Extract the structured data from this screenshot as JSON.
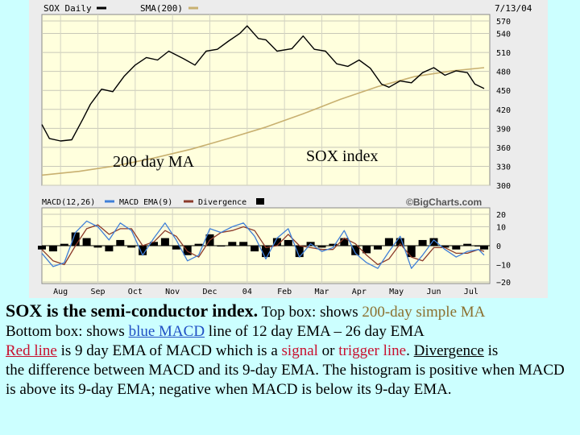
{
  "colors": {
    "background": "#CCFFFF",
    "chart_frame": "#ECECEC",
    "plot_bg": "#FFFFDD",
    "price_line": "#000000",
    "sma_line": "#C8B070",
    "macd_line": "#3F7FD8",
    "signal_line": "#8B3A2A",
    "histogram": "#000000"
  },
  "chart_data": [
    {
      "type": "line",
      "header_left": "SOX Daily",
      "legend_sma": "SMA(200)",
      "date_label": "7/13/04",
      "annotation_ma": "200 day MA",
      "annotation_index": "SOX index",
      "y_ticks": [
        "570",
        "540",
        "510",
        "480",
        "450",
        "420",
        "390",
        "360",
        "330",
        "300"
      ],
      "ylim": [
        300,
        570
      ],
      "x_ticks": [
        "Aug",
        "Sep",
        "Oct",
        "Nov",
        "Dec",
        "04",
        "Feb",
        "Mar",
        "Apr",
        "May",
        "Jun",
        "Jul"
      ],
      "x_tick_months": [
        0.5,
        1.5,
        2.5,
        3.5,
        4.5,
        5.5,
        6.5,
        7.5,
        8.5,
        9.5,
        10.5,
        11.5
      ],
      "xlim_months": [
        0,
        12
      ],
      "series": [
        {
          "name": "SOX Daily",
          "x_months": [
            0.0,
            0.2,
            0.5,
            0.8,
            1.1,
            1.3,
            1.6,
            1.9,
            2.2,
            2.5,
            2.8,
            3.1,
            3.4,
            3.8,
            4.1,
            4.4,
            4.7,
            5.0,
            5.3,
            5.5,
            5.8,
            6.0,
            6.3,
            6.7,
            7.0,
            7.3,
            7.6,
            7.9,
            8.2,
            8.5,
            8.8,
            9.1,
            9.3,
            9.6,
            9.9,
            10.2,
            10.5,
            10.8,
            11.1,
            11.4,
            11.6,
            11.85
          ],
          "values": [
            396,
            374,
            370,
            372,
            405,
            428,
            452,
            448,
            472,
            490,
            502,
            498,
            512,
            500,
            490,
            512,
            515,
            528,
            540,
            552,
            532,
            530,
            512,
            516,
            536,
            515,
            512,
            492,
            488,
            498,
            485,
            460,
            455,
            465,
            462,
            478,
            486,
            474,
            481,
            478,
            460,
            453
          ]
        },
        {
          "name": "SMA(200)",
          "x_months": [
            0.0,
            1.0,
            2.0,
            3.0,
            4.0,
            5.0,
            6.0,
            7.0,
            8.0,
            9.0,
            10.0,
            11.0,
            11.85
          ],
          "values": [
            316,
            322,
            331,
            343,
            357,
            374,
            392,
            413,
            436,
            456,
            472,
            481,
            486
          ]
        }
      ]
    },
    {
      "type": "line",
      "legend_macd": "MACD(12,26)",
      "legend_ema": "MACD EMA(9)",
      "legend_divergence": "Divergence",
      "brand": "©BigCharts.com",
      "y_ticks": [
        "20",
        "10",
        "0",
        "−10",
        "−20"
      ],
      "ylim": [
        -20,
        20
      ],
      "x_ticks": [
        "Aug",
        "Sep",
        "Oct",
        "Nov",
        "Dec",
        "04",
        "Feb",
        "Mar",
        "Apr",
        "May",
        "Jun",
        "Jul"
      ],
      "x_tick_months": [
        0.5,
        1.5,
        2.5,
        3.5,
        4.5,
        5.5,
        6.5,
        7.5,
        8.5,
        9.5,
        10.5,
        11.5
      ],
      "xlim_months": [
        0,
        12
      ],
      "series": [
        {
          "name": "MACD(12,26)",
          "x_months": [
            0.0,
            0.3,
            0.6,
            0.9,
            1.2,
            1.5,
            1.8,
            2.1,
            2.4,
            2.7,
            3.0,
            3.3,
            3.6,
            3.9,
            4.2,
            4.5,
            4.8,
            5.1,
            5.4,
            5.7,
            6.0,
            6.3,
            6.6,
            6.9,
            7.2,
            7.5,
            7.8,
            8.1,
            8.4,
            8.7,
            9.0,
            9.3,
            9.6,
            9.9,
            10.2,
            10.5,
            10.8,
            11.1,
            11.4,
            11.7,
            11.85
          ],
          "values": [
            -4,
            -11,
            -9,
            7,
            13,
            10,
            3,
            12,
            8,
            -5,
            4,
            12,
            3,
            -8,
            -5,
            9,
            7,
            10,
            12,
            5,
            -7,
            4,
            9,
            -6,
            1,
            -3,
            -1,
            8,
            -4,
            -9,
            -12,
            -3,
            5,
            -12,
            -5,
            3,
            -2,
            -6,
            -3,
            -2,
            -5
          ]
        },
        {
          "name": "MACD EMA(9)",
          "x_months": [
            0.0,
            0.3,
            0.6,
            0.9,
            1.2,
            1.5,
            1.8,
            2.1,
            2.4,
            2.7,
            3.0,
            3.3,
            3.6,
            3.9,
            4.2,
            4.5,
            4.8,
            5.1,
            5.4,
            5.7,
            6.0,
            6.3,
            6.6,
            6.9,
            7.2,
            7.5,
            7.8,
            8.1,
            8.4,
            8.7,
            9.0,
            9.3,
            9.6,
            9.9,
            10.2,
            10.5,
            10.8,
            11.1,
            11.4,
            11.7,
            11.85
          ],
          "values": [
            -2,
            -8,
            -10,
            0,
            9,
            11,
            6,
            9,
            9,
            0,
            2,
            8,
            5,
            -3,
            -6,
            3,
            7,
            8,
            10,
            8,
            -1,
            0,
            6,
            0,
            -1,
            -2,
            -2,
            4,
            1,
            -5,
            -10,
            -7,
            1,
            -6,
            -8,
            -1,
            -1,
            -4,
            -4,
            -2,
            -3
          ]
        },
        {
          "name": "Divergence",
          "x_months": [
            0.0,
            0.3,
            0.6,
            0.9,
            1.2,
            1.5,
            1.8,
            2.1,
            2.4,
            2.7,
            3.0,
            3.3,
            3.6,
            3.9,
            4.2,
            4.5,
            4.8,
            5.1,
            5.4,
            5.7,
            6.0,
            6.3,
            6.6,
            6.9,
            7.2,
            7.5,
            7.8,
            8.1,
            8.4,
            8.7,
            9.0,
            9.3,
            9.6,
            9.9,
            10.2,
            10.5,
            10.8,
            11.1,
            11.4,
            11.7,
            11.85
          ],
          "values": [
            -2,
            -3,
            1,
            7,
            4,
            -1,
            -3,
            3,
            -1,
            -5,
            2,
            4,
            -2,
            -5,
            1,
            6,
            0,
            2,
            2,
            -3,
            -6,
            4,
            3,
            -6,
            2,
            -1,
            1,
            4,
            -5,
            -4,
            -2,
            4,
            4,
            -6,
            3,
            4,
            -1,
            -2,
            1,
            0,
            -2
          ]
        }
      ]
    }
  ],
  "caption": {
    "line1_bold": "SOX is the semi-conductor index.",
    "line1_rest_a": "  Top box: shows ",
    "line1_sma": "200-day simple MA",
    "line2_a": "Bottom box:  shows ",
    "line2_blue": "blue MACD",
    "line2_b": " line of 12 day EMA – 26 day EMA",
    "line3_red": "Red line",
    "line3_a": " is 9 day EMA of MACD which is a ",
    "line3_signal": "signal",
    "line3_b": " or ",
    "line3_trigger": "trigger line",
    "line3_c": ".  ",
    "line3_divergence": "Divergence",
    "line3_d": " is",
    "line4": "the difference between MACD and its 9-day EMA. The histogram is positive when MACD is above its 9-day EMA; negative when MACD is below its 9-day EMA."
  }
}
